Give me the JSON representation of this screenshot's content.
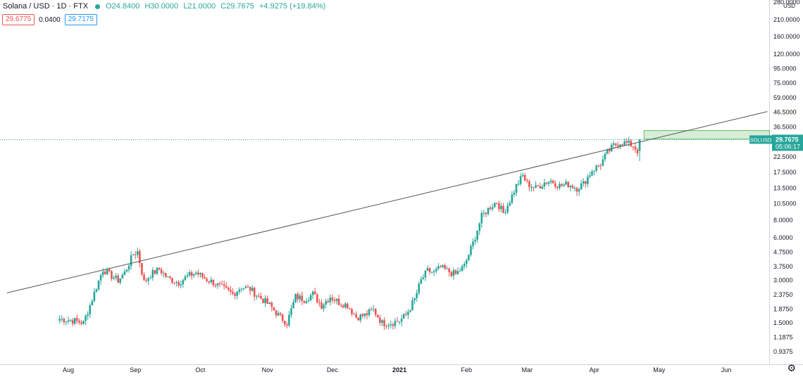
{
  "header": {
    "symbol": "Solana / USD · 1D · FTX",
    "open_label": "O",
    "open": "24.8400",
    "high_label": "H",
    "high": "30.0000",
    "low_label": "L",
    "low": "21.0000",
    "close_label": "C",
    "close": "29.7675",
    "change": "+4.9275 (+19.84%)"
  },
  "quote": {
    "sell": "29.6775",
    "spread": "0.0400",
    "buy": "29.7175"
  },
  "price_axis": {
    "currency": "USD",
    "ticks": [
      "280.0000",
      "210.0000",
      "160.0000",
      "120.0000",
      "95.0000",
      "75.0000",
      "59.0000",
      "46.5000",
      "36.5000",
      "22.5000",
      "17.5000",
      "13.5000",
      "10.5000",
      "8.0000",
      "6.0000",
      "4.7500",
      "3.7500",
      "3.0000",
      "2.3750",
      "1.8750",
      "1.5000",
      "1.1875",
      "0.9375"
    ],
    "last_symbol": "SOLUSD",
    "last_price": "29.7675",
    "countdown": "05:06:17"
  },
  "time_axis": {
    "labels": [
      "Aug",
      "Sep",
      "Oct",
      "Nov",
      "Dec",
      "2021",
      "Feb",
      "Mar",
      "Apr",
      "May",
      "Jun"
    ]
  },
  "colors": {
    "up": "#26a69a",
    "down": "#ef5350",
    "trendline": "#555555",
    "zone": "#a5d6a7"
  },
  "chart_data": {
    "type": "candlestick",
    "scale": "log",
    "ylim": [
      0.8,
      300
    ],
    "x": {
      "start": "2020-07-28",
      "end": "2021-06-18"
    },
    "close_path": [
      [
        "2020-07-28",
        1.6
      ],
      [
        "2020-08-04",
        1.55
      ],
      [
        "2020-08-08",
        1.5
      ],
      [
        "2020-08-11",
        2.0
      ],
      [
        "2020-08-14",
        2.7
      ],
      [
        "2020-08-17",
        3.6
      ],
      [
        "2020-08-20",
        3.3
      ],
      [
        "2020-08-24",
        3.0
      ],
      [
        "2020-08-27",
        3.4
      ],
      [
        "2020-08-31",
        4.6
      ],
      [
        "2020-09-02",
        4.8
      ],
      [
        "2020-09-05",
        2.9
      ],
      [
        "2020-09-08",
        3.3
      ],
      [
        "2020-09-12",
        3.6
      ],
      [
        "2020-09-16",
        3.1
      ],
      [
        "2020-09-21",
        2.9
      ],
      [
        "2020-09-25",
        3.2
      ],
      [
        "2020-09-29",
        3.4
      ],
      [
        "2020-10-03",
        3.1
      ],
      [
        "2020-10-07",
        2.9
      ],
      [
        "2020-10-12",
        2.6
      ],
      [
        "2020-10-16",
        2.4
      ],
      [
        "2020-10-20",
        2.7
      ],
      [
        "2020-10-24",
        2.6
      ],
      [
        "2020-10-28",
        2.3
      ],
      [
        "2020-11-02",
        2.0
      ],
      [
        "2020-11-06",
        1.7
      ],
      [
        "2020-11-10",
        1.5
      ],
      [
        "2020-11-14",
        2.3
      ],
      [
        "2020-11-18",
        2.2
      ],
      [
        "2020-11-22",
        2.4
      ],
      [
        "2020-11-26",
        2.0
      ],
      [
        "2020-11-30",
        2.3
      ],
      [
        "2020-12-04",
        2.1
      ],
      [
        "2020-12-08",
        2.0
      ],
      [
        "2020-12-12",
        1.65
      ],
      [
        "2020-12-16",
        1.7
      ],
      [
        "2020-12-20",
        1.85
      ],
      [
        "2020-12-24",
        1.5
      ],
      [
        "2020-12-28",
        1.5
      ],
      [
        "2021-01-01",
        1.55
      ],
      [
        "2021-01-04",
        1.7
      ],
      [
        "2021-01-08",
        2.2
      ],
      [
        "2021-01-11",
        3.0
      ],
      [
        "2021-01-14",
        3.5
      ],
      [
        "2021-01-17",
        3.4
      ],
      [
        "2021-01-20",
        3.7
      ],
      [
        "2021-01-23",
        3.5
      ],
      [
        "2021-01-27",
        3.3
      ],
      [
        "2021-01-31",
        3.8
      ],
      [
        "2021-02-04",
        5.5
      ],
      [
        "2021-02-08",
        8.5
      ],
      [
        "2021-02-12",
        10.0
      ],
      [
        "2021-02-15",
        10.8
      ],
      [
        "2021-02-18",
        9.0
      ],
      [
        "2021-02-21",
        11.0
      ],
      [
        "2021-02-24",
        14.0
      ],
      [
        "2021-02-27",
        16.5
      ],
      [
        "2021-03-01",
        14.5
      ],
      [
        "2021-03-05",
        13.5
      ],
      [
        "2021-03-09",
        14.8
      ],
      [
        "2021-03-12",
        15.2
      ],
      [
        "2021-03-16",
        14.0
      ],
      [
        "2021-03-20",
        14.4
      ],
      [
        "2021-03-24",
        13.5
      ],
      [
        "2021-03-27",
        14.5
      ],
      [
        "2021-03-31",
        18.0
      ],
      [
        "2021-04-04",
        20.0
      ],
      [
        "2021-04-07",
        24.0
      ],
      [
        "2021-04-10",
        27.0
      ],
      [
        "2021-04-13",
        28.5
      ],
      [
        "2021-04-16",
        28.0
      ],
      [
        "2021-04-19",
        27.0
      ],
      [
        "2021-04-21",
        24.84
      ],
      [
        "2021-04-22",
        29.7675
      ]
    ],
    "trendline": [
      [
        "2020-07-28",
        3.0
      ],
      [
        "2021-06-20",
        47.0
      ]
    ],
    "zone": {
      "from": "2021-04-24",
      "to": "2021-06-21",
      "low": 30.0,
      "high": 34.5
    },
    "last_close": 29.7675,
    "time_ticks": [
      [
        "2020-08-01",
        "Aug"
      ],
      [
        "2020-09-01",
        "Sep"
      ],
      [
        "2020-10-01",
        "Oct"
      ],
      [
        "2020-11-01",
        "Nov"
      ],
      [
        "2020-12-01",
        "Dec"
      ],
      [
        "2021-01-01",
        "2021"
      ],
      [
        "2021-02-01",
        "Feb"
      ],
      [
        "2021-03-01",
        "Mar"
      ],
      [
        "2021-04-01",
        "Apr"
      ],
      [
        "2021-05-01",
        "May"
      ],
      [
        "2021-06-01",
        "Jun"
      ]
    ],
    "price_ticks": [
      280,
      210,
      160,
      120,
      95,
      75,
      59,
      46.5,
      36.5,
      22.5,
      17.5,
      13.5,
      10.5,
      8,
      6,
      4.75,
      3.75,
      3,
      2.375,
      1.875,
      1.5,
      1.1875,
      0.9375
    ]
  }
}
